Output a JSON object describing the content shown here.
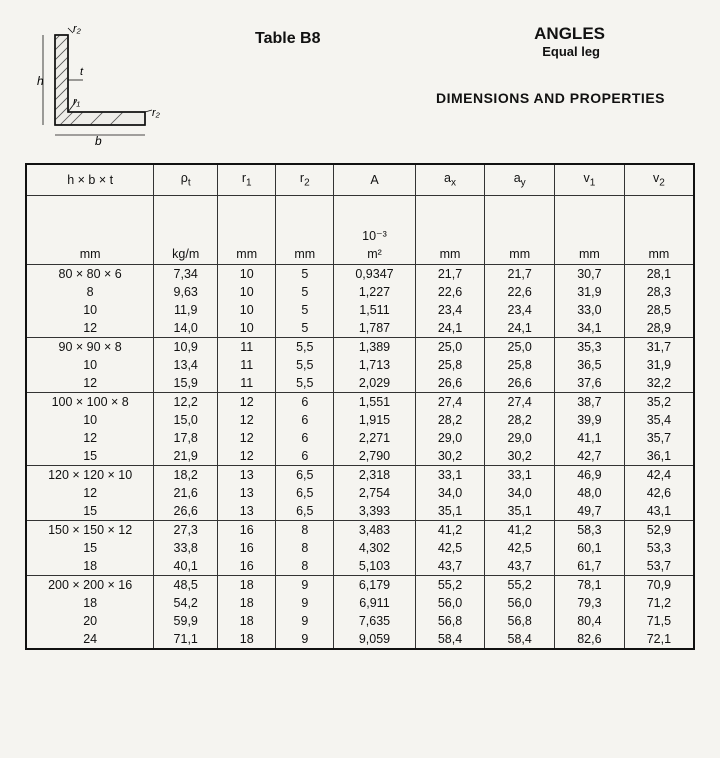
{
  "labels": {
    "table_label": "Table B8",
    "main_title": "ANGLES",
    "sub_title": "Equal leg",
    "section_title": "DIMENSIONS AND PROPERTIES"
  },
  "diagram": {
    "h": "h",
    "b": "b",
    "t": "t",
    "r1": "r₁",
    "r2_top": "r₂",
    "r2_side": "r₂"
  },
  "columns": {
    "c0": "h × b × t",
    "c1": "ρ",
    "c1_sub": "t",
    "c2": "r",
    "c2_sub": "1",
    "c3": "r",
    "c3_sub": "2",
    "c4": "A",
    "c5": "a",
    "c5_sub": "x",
    "c6": "a",
    "c6_sub": "y",
    "c7": "v",
    "c7_sub": "1",
    "c8": "v",
    "c8_sub": "2"
  },
  "units": {
    "u0": "mm",
    "u1": "kg/m",
    "u2": "mm",
    "u3": "mm",
    "u4_top": "10⁻³",
    "u4": "m²",
    "u5": "mm",
    "u6": "mm",
    "u7": "mm",
    "u8": "mm"
  },
  "groups": [
    {
      "rows": [
        {
          "size": "80 × 80 × 6",
          "p": "7,34",
          "r1": "10",
          "r2": "5",
          "A": "0,9347",
          "ax": "21,7",
          "ay": "21,7",
          "v1": "30,7",
          "v2": "28,1"
        },
        {
          "size": "8",
          "p": "9,63",
          "r1": "10",
          "r2": "5",
          "A": "1,227",
          "ax": "22,6",
          "ay": "22,6",
          "v1": "31,9",
          "v2": "28,3"
        },
        {
          "size": "10",
          "p": "11,9",
          "r1": "10",
          "r2": "5",
          "A": "1,511",
          "ax": "23,4",
          "ay": "23,4",
          "v1": "33,0",
          "v2": "28,5"
        },
        {
          "size": "12",
          "p": "14,0",
          "r1": "10",
          "r2": "5",
          "A": "1,787",
          "ax": "24,1",
          "ay": "24,1",
          "v1": "34,1",
          "v2": "28,9"
        }
      ]
    },
    {
      "rows": [
        {
          "size": "90 × 90 × 8",
          "p": "10,9",
          "r1": "11",
          "r2": "5,5",
          "A": "1,389",
          "ax": "25,0",
          "ay": "25,0",
          "v1": "35,3",
          "v2": "31,7"
        },
        {
          "size": "10",
          "p": "13,4",
          "r1": "11",
          "r2": "5,5",
          "A": "1,713",
          "ax": "25,8",
          "ay": "25,8",
          "v1": "36,5",
          "v2": "31,9"
        },
        {
          "size": "12",
          "p": "15,9",
          "r1": "11",
          "r2": "5,5",
          "A": "2,029",
          "ax": "26,6",
          "ay": "26,6",
          "v1": "37,6",
          "v2": "32,2"
        }
      ]
    },
    {
      "rows": [
        {
          "size": "100 × 100 × 8",
          "p": "12,2",
          "r1": "12",
          "r2": "6",
          "A": "1,551",
          "ax": "27,4",
          "ay": "27,4",
          "v1": "38,7",
          "v2": "35,2"
        },
        {
          "size": "10",
          "p": "15,0",
          "r1": "12",
          "r2": "6",
          "A": "1,915",
          "ax": "28,2",
          "ay": "28,2",
          "v1": "39,9",
          "v2": "35,4"
        },
        {
          "size": "12",
          "p": "17,8",
          "r1": "12",
          "r2": "6",
          "A": "2,271",
          "ax": "29,0",
          "ay": "29,0",
          "v1": "41,1",
          "v2": "35,7"
        },
        {
          "size": "15",
          "p": "21,9",
          "r1": "12",
          "r2": "6",
          "A": "2,790",
          "ax": "30,2",
          "ay": "30,2",
          "v1": "42,7",
          "v2": "36,1"
        }
      ]
    },
    {
      "rows": [
        {
          "size": "120 × 120 × 10",
          "p": "18,2",
          "r1": "13",
          "r2": "6,5",
          "A": "2,318",
          "ax": "33,1",
          "ay": "33,1",
          "v1": "46,9",
          "v2": "42,4"
        },
        {
          "size": "12",
          "p": "21,6",
          "r1": "13",
          "r2": "6,5",
          "A": "2,754",
          "ax": "34,0",
          "ay": "34,0",
          "v1": "48,0",
          "v2": "42,6"
        },
        {
          "size": "15",
          "p": "26,6",
          "r1": "13",
          "r2": "6,5",
          "A": "3,393",
          "ax": "35,1",
          "ay": "35,1",
          "v1": "49,7",
          "v2": "43,1"
        }
      ]
    },
    {
      "rows": [
        {
          "size": "150 × 150 × 12",
          "p": "27,3",
          "r1": "16",
          "r2": "8",
          "A": "3,483",
          "ax": "41,2",
          "ay": "41,2",
          "v1": "58,3",
          "v2": "52,9"
        },
        {
          "size": "15",
          "p": "33,8",
          "r1": "16",
          "r2": "8",
          "A": "4,302",
          "ax": "42,5",
          "ay": "42,5",
          "v1": "60,1",
          "v2": "53,3"
        },
        {
          "size": "18",
          "p": "40,1",
          "r1": "16",
          "r2": "8",
          "A": "5,103",
          "ax": "43,7",
          "ay": "43,7",
          "v1": "61,7",
          "v2": "53,7"
        }
      ]
    },
    {
      "rows": [
        {
          "size": "200 × 200 × 16",
          "p": "48,5",
          "r1": "18",
          "r2": "9",
          "A": "6,179",
          "ax": "55,2",
          "ay": "55,2",
          "v1": "78,1",
          "v2": "70,9"
        },
        {
          "size": "18",
          "p": "54,2",
          "r1": "18",
          "r2": "9",
          "A": "6,911",
          "ax": "56,0",
          "ay": "56,0",
          "v1": "79,3",
          "v2": "71,2"
        },
        {
          "size": "20",
          "p": "59,9",
          "r1": "18",
          "r2": "9",
          "A": "7,635",
          "ax": "56,8",
          "ay": "56,8",
          "v1": "80,4",
          "v2": "71,5"
        },
        {
          "size": "24",
          "p": "71,1",
          "r1": "18",
          "r2": "9",
          "A": "9,059",
          "ax": "58,4",
          "ay": "58,4",
          "v1": "82,6",
          "v2": "72,1"
        }
      ]
    }
  ],
  "style": {
    "border_color": "#111",
    "grid_color": "#333",
    "background": "#f5f4f0",
    "font_family": "Arial",
    "header_fontsize": 13,
    "title_fontsize": 17
  }
}
